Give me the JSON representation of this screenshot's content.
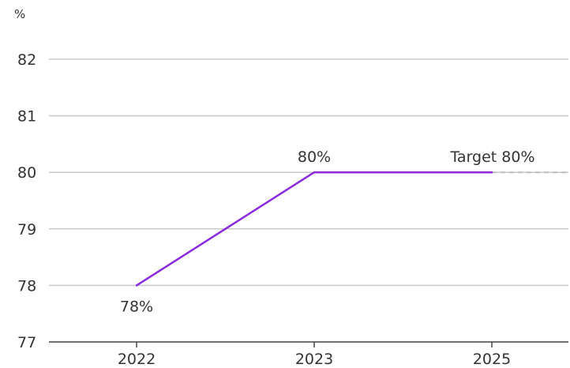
{
  "chart_data": {
    "type": "line",
    "unit_label": "%",
    "categories": [
      "2022",
      "2023",
      "2025"
    ],
    "y_ticks": [
      "77",
      "78",
      "79",
      "80",
      "81",
      "82"
    ],
    "ylim": [
      77,
      82
    ],
    "series": [
      {
        "values": [
          78,
          80,
          80
        ]
      }
    ],
    "target": {
      "value": 80
    },
    "data_labels": [
      {
        "category": "2022",
        "text": "78%",
        "placement": "below"
      },
      {
        "category": "2023",
        "text": "80%",
        "placement": "above"
      },
      {
        "category": "2025",
        "text": "Target 80%",
        "placement": "above"
      }
    ],
    "grid": true,
    "colors": {
      "line": "#8a2be2",
      "grid": "#c8c8c8",
      "axis": "#444444",
      "target_line": "#bbbbbb",
      "text": "#333333"
    }
  }
}
